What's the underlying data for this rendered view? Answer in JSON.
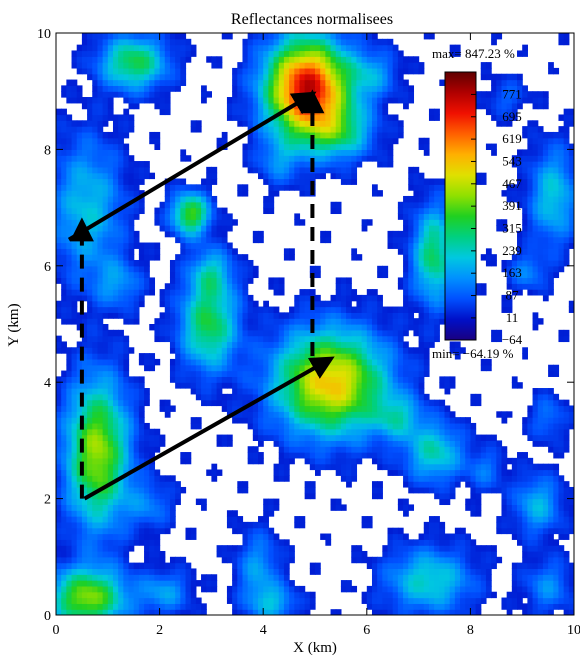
{
  "chart_data": {
    "type": "heatmap",
    "title": "Reflectances normalisees",
    "xlabel": "X (km)",
    "ylabel": "Y (km)",
    "xlim": [
      0,
      10
    ],
    "ylim": [
      0,
      10
    ],
    "xticks": [
      "0",
      "2",
      "4",
      "6",
      "8",
      "10"
    ],
    "yticks": [
      "0",
      "2",
      "4",
      "6",
      "8",
      "10"
    ],
    "max_label": "max= 847.23 %",
    "min_label": "min= −64.19 %",
    "colorbar": {
      "range": [
        -64.19,
        847.23
      ],
      "ticks": [
        "771",
        "695",
        "619",
        "543",
        "467",
        "391",
        "315",
        "239",
        "163",
        "87",
        "11",
        "−64"
      ],
      "tick_values": [
        771,
        695,
        619,
        543,
        467,
        391,
        315,
        239,
        163,
        87,
        11,
        -64
      ],
      "colors": [
        "#1a0080",
        "#0010c8",
        "#0050ff",
        "#0090ff",
        "#00c8e0",
        "#00d080",
        "#20d020",
        "#90e000",
        "#e0e000",
        "#ffb000",
        "#ff6000",
        "#f01000",
        "#b00000",
        "#600000"
      ]
    },
    "blobs": [
      {
        "x": 4.85,
        "y": 9.05,
        "rx": 0.85,
        "ry": 0.9,
        "peak": 760
      },
      {
        "x": 5.5,
        "y": 8.3,
        "rx": 0.7,
        "ry": 0.5,
        "peak": 220
      },
      {
        "x": 6.1,
        "y": 9.3,
        "rx": 0.55,
        "ry": 0.45,
        "peak": 150
      },
      {
        "x": 1.5,
        "y": 9.5,
        "rx": 0.7,
        "ry": 0.5,
        "peak": 330
      },
      {
        "x": 0.6,
        "y": 7.0,
        "rx": 0.75,
        "ry": 1.3,
        "peak": 210
      },
      {
        "x": 1.2,
        "y": 5.7,
        "rx": 0.5,
        "ry": 0.45,
        "peak": 140
      },
      {
        "x": 2.6,
        "y": 6.9,
        "rx": 0.4,
        "ry": 0.4,
        "peak": 380
      },
      {
        "x": 3.0,
        "y": 5.9,
        "rx": 0.45,
        "ry": 0.45,
        "peak": 180
      },
      {
        "x": 2.95,
        "y": 5.0,
        "rx": 0.6,
        "ry": 0.85,
        "peak": 330
      },
      {
        "x": 4.3,
        "y": 7.8,
        "rx": 0.45,
        "ry": 0.45,
        "peak": 120
      },
      {
        "x": 5.3,
        "y": 4.0,
        "rx": 1.15,
        "ry": 0.95,
        "peak": 540
      },
      {
        "x": 6.6,
        "y": 3.4,
        "rx": 0.5,
        "ry": 0.4,
        "peak": 180
      },
      {
        "x": 7.3,
        "y": 6.2,
        "rx": 0.45,
        "ry": 0.9,
        "peak": 310
      },
      {
        "x": 9.6,
        "y": 7.2,
        "rx": 0.5,
        "ry": 0.9,
        "peak": 220
      },
      {
        "x": 9.1,
        "y": 5.9,
        "rx": 0.4,
        "ry": 0.35,
        "peak": 130
      },
      {
        "x": 8.7,
        "y": 8.9,
        "rx": 0.45,
        "ry": 0.35,
        "peak": 90
      },
      {
        "x": 0.8,
        "y": 2.8,
        "rx": 0.65,
        "ry": 1.35,
        "peak": 440
      },
      {
        "x": 1.8,
        "y": 1.9,
        "rx": 0.5,
        "ry": 0.45,
        "peak": 120
      },
      {
        "x": 7.3,
        "y": 2.8,
        "rx": 0.6,
        "ry": 0.55,
        "peak": 250
      },
      {
        "x": 8.3,
        "y": 2.5,
        "rx": 0.4,
        "ry": 0.4,
        "peak": 110
      },
      {
        "x": 9.3,
        "y": 1.9,
        "rx": 0.5,
        "ry": 0.55,
        "peak": 190
      },
      {
        "x": 0.6,
        "y": 0.3,
        "rx": 0.8,
        "ry": 0.55,
        "peak": 420
      },
      {
        "x": 2.1,
        "y": 0.4,
        "rx": 0.55,
        "ry": 0.4,
        "peak": 160
      },
      {
        "x": 3.9,
        "y": 0.8,
        "rx": 0.45,
        "ry": 0.7,
        "peak": 160
      },
      {
        "x": 4.2,
        "y": 0.2,
        "rx": 0.5,
        "ry": 0.35,
        "peak": 170
      },
      {
        "x": 7.2,
        "y": 0.6,
        "rx": 0.9,
        "ry": 0.6,
        "peak": 240
      },
      {
        "x": 9.5,
        "y": 0.5,
        "rx": 0.5,
        "ry": 0.5,
        "peak": 140
      },
      {
        "x": 9.5,
        "y": 3.4,
        "rx": 0.4,
        "ry": 0.45,
        "peak": 110
      }
    ],
    "arrows": [
      {
        "style": "solid",
        "from": [
          0.55,
          2.0
        ],
        "to": [
          5.3,
          4.4
        ]
      },
      {
        "style": "solid",
        "from": [
          0.25,
          6.45
        ],
        "to": [
          4.95,
          8.95
        ]
      },
      {
        "style": "dashed",
        "from": [
          0.5,
          2.0
        ],
        "to": [
          0.5,
          6.75
        ]
      },
      {
        "style": "dashed",
        "from": [
          4.95,
          4.45
        ],
        "to": [
          4.95,
          8.95
        ]
      }
    ]
  }
}
